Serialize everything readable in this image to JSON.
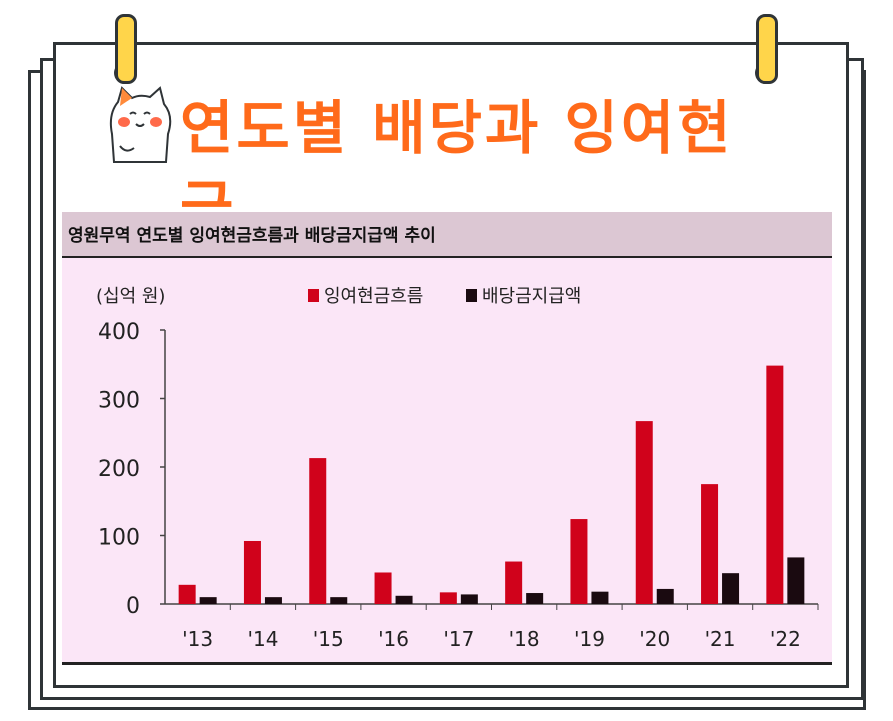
{
  "title": "연도별 배당과 잉여현금",
  "chart_data": {
    "type": "bar",
    "title": "영원무역 연도별 잉여현금흐름과 배당금지급액 추이",
    "unit_label": "(십억 원)",
    "categories": [
      "'13",
      "'14",
      "'15",
      "'16",
      "'17",
      "'18",
      "'19",
      "'20",
      "'21",
      "'22"
    ],
    "series": [
      {
        "name": "잉여현금흐름",
        "color": "#d0021b",
        "values": [
          28,
          92,
          213,
          46,
          17,
          62,
          124,
          267,
          175,
          348
        ]
      },
      {
        "name": "배당금지급액",
        "color": "#1a0a10",
        "values": [
          10,
          10,
          10,
          12,
          14,
          16,
          18,
          22,
          45,
          68
        ]
      }
    ],
    "yticks": [
      "0",
      "100",
      "200",
      "300",
      "400"
    ],
    "ylim": [
      0,
      400
    ],
    "legend": "top"
  }
}
